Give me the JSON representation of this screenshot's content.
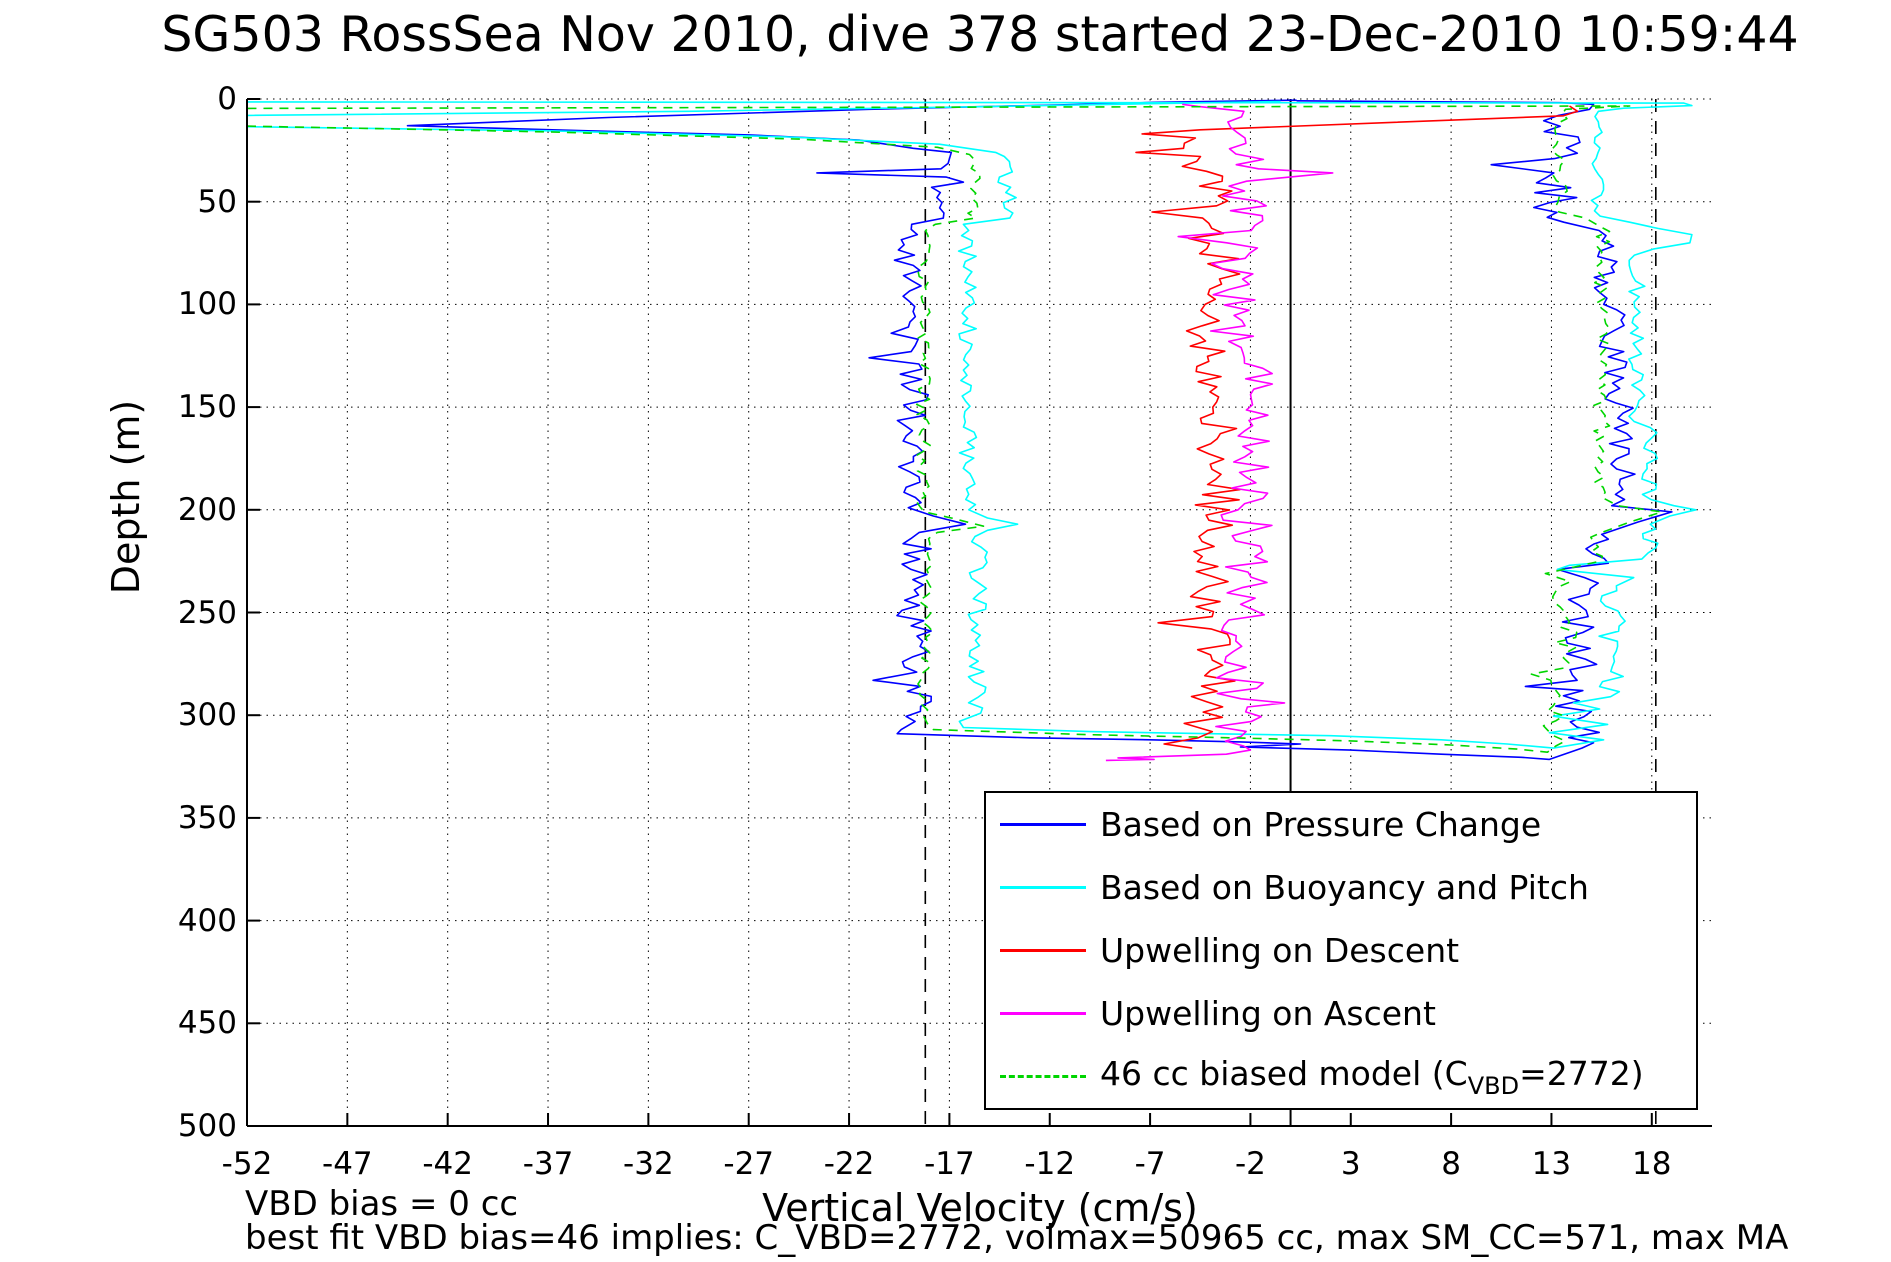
{
  "title": "SG503 RossSea Nov 2010, dive 378 started 23-Dec-2010 10:59:44",
  "axes": {
    "xlabel": "Vertical Velocity (cm/s)",
    "ylabel": "Depth (m)",
    "x_ticks": [
      -52,
      -47,
      -42,
      -37,
      -32,
      -27,
      -22,
      -17,
      -12,
      -7,
      -2,
      3,
      8,
      13,
      18
    ],
    "y_ticks": [
      0,
      50,
      100,
      150,
      200,
      250,
      300,
      350,
      400,
      450,
      500
    ],
    "x_range": [
      -52,
      21
    ],
    "y_range": [
      0,
      500
    ]
  },
  "annotations": {
    "vbd_bias_line": "VBD bias = 0 cc",
    "best_fit_line": "best fit VBD bias=46 implies: C_VBD=2772, volmax=50965 cc, max SM_CC=571, max MA"
  },
  "legend": {
    "entries": [
      {
        "label": "Based on Pressure Change",
        "color": "#0000FF",
        "dash": false
      },
      {
        "label": "Based on Buoyancy and Pitch",
        "color": "#00FFFF",
        "dash": false
      },
      {
        "label": "Upwelling on Descent",
        "color": "#FF0000",
        "dash": false
      },
      {
        "label": "Upwelling on Ascent",
        "color": "#FF00FF",
        "dash": false
      },
      {
        "label": "46 cc biased model (C_VBD=2772)",
        "color": "#00D500",
        "dash": true,
        "label_parts": [
          {
            "t": "46 cc biased model (C"
          },
          {
            "t": "VBD",
            "sub": true
          },
          {
            "t": "=2772)"
          }
        ]
      }
    ]
  },
  "chart_data": {
    "type": "line",
    "title": "SG503 RossSea Nov 2010, dive 378 started 23-Dec-2010 10:59:44",
    "xlabel": "Vertical Velocity (cm/s)",
    "ylabel": "Depth (m)",
    "x_range": [
      -52,
      21
    ],
    "y_range_depth_m": [
      0,
      500
    ],
    "grid": "dotted",
    "legend_position": "lower-right-inside",
    "reference_lines": [
      {
        "x": 0,
        "style": "solid",
        "color": "#000000"
      },
      {
        "x": -18.2,
        "style": "dashed",
        "color": "#000000"
      },
      {
        "x": 18.2,
        "style": "dashed",
        "color": "#000000"
      }
    ],
    "noise_seed": 7,
    "noise_step_m": 2.5,
    "series": [
      {
        "name": "Based on Pressure Change",
        "color": "#0000FF",
        "dash": false,
        "ops": [
          [
            "p",
            0.3,
            0.6
          ],
          [
            "p",
            -6.8,
            1.6
          ],
          [
            "p",
            -8.6,
            2.2
          ],
          [
            "p",
            -21,
            5
          ],
          [
            "p",
            -34,
            9
          ],
          [
            "p",
            -44,
            13
          ],
          [
            "p",
            -35,
            15.5
          ],
          [
            "p",
            -27,
            17.5
          ],
          [
            "p",
            -21.5,
            20
          ],
          [
            "p",
            -18.8,
            24
          ],
          [
            "b",
            -17.3,
            26,
            34,
            0.9
          ],
          [
            "p",
            -23.6,
            36
          ],
          [
            "b",
            -17.2,
            38,
            58,
            0.9
          ],
          [
            "b",
            -19.0,
            61,
            111,
            0.8
          ],
          [
            "p",
            -19.9,
            114
          ],
          [
            "b",
            -18.7,
            117,
            123,
            0.6
          ],
          [
            "p",
            -21.0,
            126
          ],
          [
            "b",
            -18.8,
            129,
            199,
            0.8
          ],
          [
            "p",
            -17.8,
            203
          ],
          [
            "p",
            -16.2,
            207
          ],
          [
            "p",
            -18.5,
            211
          ],
          [
            "b",
            -18.8,
            214,
            279,
            0.9
          ],
          [
            "p",
            -20.8,
            283
          ],
          [
            "b",
            -18.7,
            286,
            303,
            0.8
          ],
          [
            "p",
            -19.4,
            307
          ],
          [
            "p",
            -19.6,
            309
          ],
          [
            "p",
            -13,
            311
          ],
          [
            "p",
            -7,
            312
          ],
          [
            "p",
            -2.5,
            313
          ],
          [
            "p",
            0.5,
            314
          ],
          [
            "p",
            -2.5,
            315.5
          ],
          [
            "p",
            3,
            317
          ],
          [
            "p",
            7.5,
            319
          ],
          [
            "p",
            11.5,
            320.5
          ],
          [
            "p",
            12.9,
            321.5
          ],
          [
            "b",
            14.2,
            316,
            288,
            1.2
          ],
          [
            "p",
            11.7,
            286
          ],
          [
            "b",
            14.4,
            283,
            252,
            1.0
          ],
          [
            "b",
            14.7,
            249,
            233,
            1.2
          ],
          [
            "p",
            13.3,
            229
          ],
          [
            "b",
            15.5,
            226,
            212,
            0.8
          ],
          [
            "p",
            17.3,
            206
          ],
          [
            "p",
            19.0,
            201
          ],
          [
            "p",
            16.0,
            198
          ],
          [
            "b",
            16.5,
            195,
            148,
            0.7
          ],
          [
            "b",
            16.0,
            146,
            100,
            0.9
          ],
          [
            "b",
            15.7,
            97,
            64,
            0.8
          ],
          [
            "b",
            13.3,
            60,
            36,
            1.2
          ],
          [
            "p",
            10.0,
            32
          ],
          [
            "b",
            13.6,
            29,
            8,
            1.0
          ],
          [
            "p",
            14.9,
            5
          ],
          [
            "p",
            15.1,
            2.6
          ],
          [
            "p",
            13.5,
            1.8
          ],
          [
            "p",
            0.3,
            0.9
          ]
        ]
      },
      {
        "name": "Based on Buoyancy and Pitch",
        "color": "#00FFFF",
        "dash": false,
        "ops": [
          [
            "p",
            -0.5,
            1.2
          ],
          [
            "p",
            -14,
            3.5
          ],
          [
            "p",
            -30,
            6
          ],
          [
            "p",
            -52,
            8
          ],
          [
            "p",
            -52,
            13.5
          ],
          [
            "p",
            -37,
            15.5
          ],
          [
            "p",
            -25,
            18.5
          ],
          [
            "p",
            -17.5,
            22
          ],
          [
            "p",
            -14.7,
            26
          ],
          [
            "b",
            -14.1,
            28,
            58,
            0.5
          ],
          [
            "p",
            -16.3,
            61
          ],
          [
            "b",
            -16.1,
            64,
            200,
            0.45
          ],
          [
            "p",
            -15.1,
            204
          ],
          [
            "p",
            -13.6,
            207
          ],
          [
            "p",
            -15.1,
            210
          ],
          [
            "b",
            -15.6,
            213,
            299,
            0.5
          ],
          [
            "p",
            -16.5,
            303
          ],
          [
            "p",
            -16.3,
            306
          ],
          [
            "p",
            -10,
            308
          ],
          [
            "p",
            -4,
            309
          ],
          [
            "p",
            2,
            310
          ],
          [
            "p",
            7.5,
            312
          ],
          [
            "p",
            10.8,
            314
          ],
          [
            "p",
            13.1,
            316
          ],
          [
            "p",
            15.6,
            312
          ],
          [
            "p",
            12.9,
            308.5
          ],
          [
            "p",
            15.8,
            304.5
          ],
          [
            "p",
            13.1,
            300.5
          ],
          [
            "p",
            15.4,
            297
          ],
          [
            "p",
            14.1,
            294
          ],
          [
            "b",
            16.0,
            291,
            237,
            0.7
          ],
          [
            "p",
            17.1,
            233
          ],
          [
            "p",
            13.3,
            229
          ],
          [
            "p",
            13.9,
            227
          ],
          [
            "p",
            17.5,
            224
          ],
          [
            "b",
            17.9,
            221,
            207,
            0.5
          ],
          [
            "p",
            18.9,
            203
          ],
          [
            "p",
            20.2,
            200
          ],
          [
            "p",
            19.1,
            198
          ],
          [
            "b",
            17.9,
            195,
            160,
            0.4
          ],
          [
            "b",
            17.3,
            157,
            76,
            0.45
          ],
          [
            "p",
            18.1,
            73
          ],
          [
            "p",
            19.9,
            70
          ],
          [
            "p",
            20.0,
            66
          ],
          [
            "p",
            18.3,
            63
          ],
          [
            "p",
            16.9,
            60
          ],
          [
            "b",
            15.3,
            57,
            6,
            0.35
          ],
          [
            "p",
            16.6,
            4.5
          ],
          [
            "p",
            20.0,
            3.2
          ],
          [
            "p",
            19.6,
            2.0
          ],
          [
            "p",
            -52,
            1.4
          ]
        ]
      },
      {
        "name": "Upwelling on Descent",
        "color": "#FF0000",
        "dash": false,
        "ops": [
          [
            "p",
            13.9,
            3.4
          ],
          [
            "p",
            14.3,
            6
          ],
          [
            "p",
            13.6,
            8.2
          ],
          [
            "p",
            -4.5,
            15
          ],
          [
            "p",
            -7.4,
            17
          ],
          [
            "b",
            -5.0,
            19,
            24,
            1.2
          ],
          [
            "p",
            -7.7,
            26
          ],
          [
            "b",
            -4.2,
            28,
            52,
            1.3
          ],
          [
            "p",
            -6.9,
            55
          ],
          [
            "b",
            -3.8,
            58,
            100,
            1.3
          ],
          [
            "b",
            -4.3,
            103,
            150,
            1.2
          ],
          [
            "b",
            -3.6,
            153,
            210,
            1.2
          ],
          [
            "b",
            -4.4,
            213,
            252,
            1.3
          ],
          [
            "p",
            -6.6,
            255
          ],
          [
            "b",
            -3.9,
            258,
            301,
            1.2
          ],
          [
            "p",
            -5.3,
            304
          ],
          [
            "p",
            -3.9,
            308
          ],
          [
            "p",
            -4.6,
            311
          ],
          [
            "p",
            -6.3,
            314
          ],
          [
            "p",
            -4.9,
            316
          ]
        ]
      },
      {
        "name": "Upwelling on Ascent",
        "color": "#FF00FF",
        "dash": false,
        "ops": [
          [
            "p",
            -9.2,
            322
          ],
          [
            "p",
            -6.8,
            321.5
          ],
          [
            "p",
            -8.6,
            320.8
          ],
          [
            "p",
            -3.2,
            319
          ],
          [
            "p",
            -2.0,
            317
          ],
          [
            "b",
            -2.7,
            315,
            296,
            1.3
          ],
          [
            "p",
            -0.3,
            294
          ],
          [
            "b",
            -2.5,
            292,
            246,
            1.2
          ],
          [
            "b",
            -2.1,
            243,
            200,
            1.4
          ],
          [
            "b",
            -2.0,
            197,
            121,
            1.1
          ],
          [
            "b",
            -2.7,
            118,
            70,
            1.3
          ],
          [
            "p",
            -5.6,
            67
          ],
          [
            "b",
            -2.3,
            64,
            40,
            1.1
          ],
          [
            "p",
            2.1,
            36
          ],
          [
            "p",
            -1.6,
            34
          ],
          [
            "b",
            -2.4,
            32,
            6,
            1.1
          ],
          [
            "p",
            -4.6,
            3.6
          ],
          [
            "p",
            -5.4,
            2.6
          ]
        ]
      },
      {
        "name": "46 cc biased model (C_VBD=2772)",
        "color": "#00D500",
        "dash": true,
        "ops": [
          [
            "p",
            -52,
            13.2
          ],
          [
            "p",
            -37,
            16
          ],
          [
            "p",
            -24.5,
            19.5
          ],
          [
            "p",
            -17.6,
            23.5
          ],
          [
            "p",
            -16.0,
            27
          ],
          [
            "b",
            -15.7,
            29,
            58,
            0.4
          ],
          [
            "p",
            -17.7,
            61
          ],
          [
            "b",
            -18.3,
            64,
            201,
            0.35
          ],
          [
            "p",
            -16.9,
            204
          ],
          [
            "p",
            -15.3,
            208
          ],
          [
            "p",
            -17.6,
            211
          ],
          [
            "b",
            -18.2,
            214,
            300,
            0.4
          ],
          [
            "p",
            -18.1,
            304
          ],
          [
            "p",
            -17.8,
            307
          ],
          [
            "p",
            -10,
            309.5
          ],
          [
            "p",
            -3,
            311
          ],
          [
            "p",
            3,
            312.5
          ],
          [
            "p",
            8,
            314.5
          ],
          [
            "p",
            11.3,
            316.5
          ],
          [
            "p",
            12.8,
            318
          ],
          [
            "b",
            13.2,
            315,
            283,
            0.6
          ],
          [
            "p",
            12.0,
            280
          ],
          [
            "b",
            13.7,
            277,
            235,
            0.7
          ],
          [
            "p",
            12.7,
            231
          ],
          [
            "p",
            14.1,
            228
          ],
          [
            "b",
            15.3,
            225,
            211,
            0.5
          ],
          [
            "p",
            16.9,
            206
          ],
          [
            "p",
            18.5,
            201
          ],
          [
            "p",
            16.3,
            198
          ],
          [
            "b",
            15.5,
            194,
            62,
            0.4
          ],
          [
            "p",
            14.7,
            58
          ],
          [
            "b",
            13.4,
            55,
            7,
            0.4
          ],
          [
            "p",
            13.7,
            5
          ],
          [
            "p",
            16.9,
            3.4
          ],
          [
            "p",
            -52,
            4.6
          ]
        ]
      }
    ]
  }
}
